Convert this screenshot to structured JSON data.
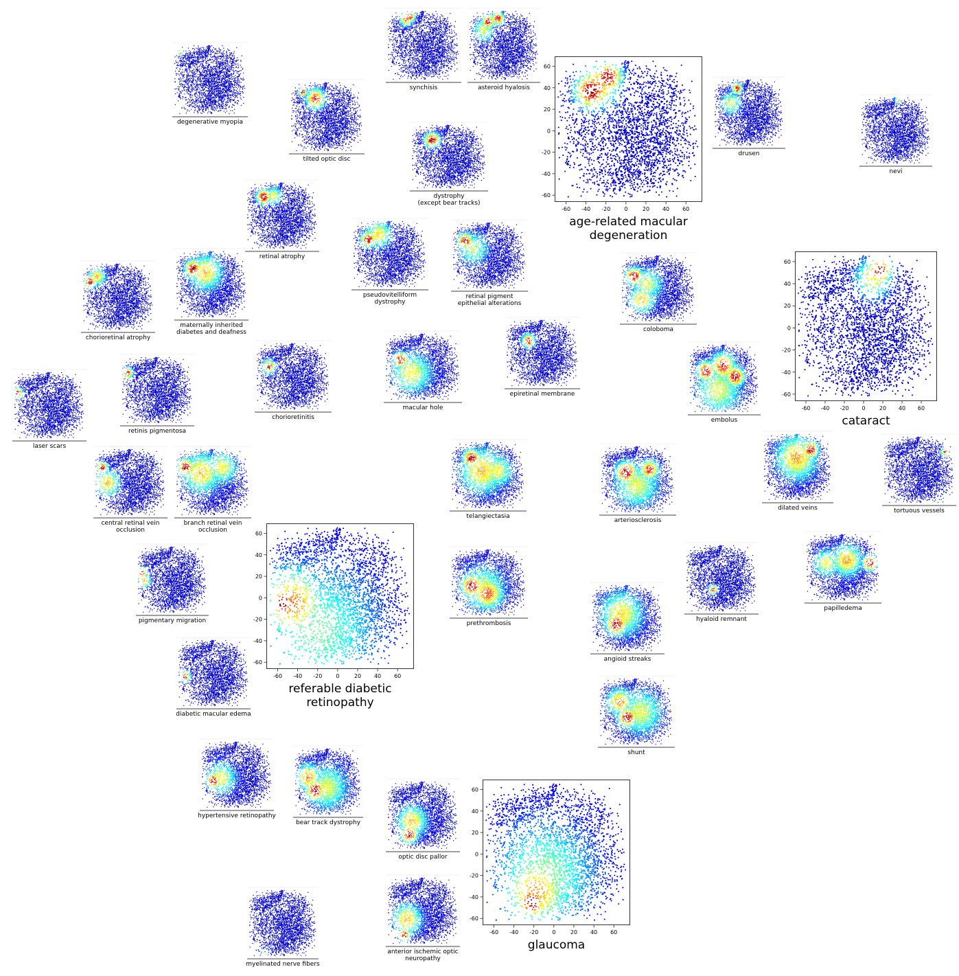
{
  "figure": {
    "colormap": "jet",
    "point_color_low": "#00008b",
    "point_color_high": "#8b0000"
  },
  "chart_data": [
    {
      "type": "scatter",
      "title": "age-related macular degeneration",
      "size": "large",
      "xlim": [
        -70,
        75
      ],
      "ylim": [
        -65,
        68
      ],
      "xticks": [
        -60,
        -40,
        -20,
        0,
        20,
        40,
        60
      ],
      "yticks": [
        -60,
        -40,
        -20,
        0,
        20,
        40,
        60
      ],
      "hotspots": [
        {
          "x": -35,
          "y": 37,
          "s": 8,
          "w": 1
        },
        {
          "x": -18,
          "y": 50,
          "s": 7,
          "w": 0.95
        },
        {
          "x": -28,
          "y": 42,
          "s": 10,
          "w": 0.6
        }
      ]
    },
    {
      "type": "scatter",
      "title": "referable diabetic\nretinopathy",
      "size": "large",
      "xlim": [
        -70,
        75
      ],
      "ylim": [
        -65,
        68
      ],
      "xticks": [
        -60,
        -40,
        -20,
        0,
        20,
        40,
        60
      ],
      "yticks": [
        -60,
        -40,
        -20,
        0,
        20,
        40,
        60
      ],
      "hotspots": [
        {
          "x": -55,
          "y": -5,
          "s": 7,
          "w": 1
        },
        {
          "x": -45,
          "y": -5,
          "s": 16,
          "w": 0.6
        },
        {
          "x": -20,
          "y": -30,
          "s": 30,
          "w": 0.22
        }
      ]
    },
    {
      "type": "scatter",
      "title": "cataract",
      "size": "large",
      "xlim": [
        -70,
        75
      ],
      "ylim": [
        -65,
        68
      ],
      "xticks": [
        -60,
        -40,
        -20,
        0,
        20,
        40,
        60
      ],
      "yticks": [
        -60,
        -40,
        -20,
        0,
        20,
        40,
        60
      ],
      "hotspots": [
        {
          "x": 17,
          "y": 52,
          "s": 6,
          "w": 1
        },
        {
          "x": 10,
          "y": 45,
          "s": 9,
          "w": 0.4
        }
      ]
    },
    {
      "type": "scatter",
      "title": "glaucoma",
      "size": "large",
      "xlim": [
        -70,
        75
      ],
      "ylim": [
        -65,
        68
      ],
      "xticks": [
        -60,
        -40,
        -20,
        0,
        20,
        40,
        60
      ],
      "yticks": [
        -60,
        -40,
        -20,
        0,
        20,
        40,
        60
      ],
      "hotspots": [
        {
          "x": -22,
          "y": -45,
          "s": 7,
          "w": 1
        },
        {
          "x": -18,
          "y": -35,
          "s": 16,
          "w": 0.55
        },
        {
          "x": -10,
          "y": -20,
          "s": 25,
          "w": 0.25
        }
      ]
    },
    {
      "type": "scatter",
      "title": "degenerative myopia",
      "size": "small",
      "hotspots": [
        {
          "x": -57,
          "y": 53,
          "s": 3,
          "w": 1
        }
      ]
    },
    {
      "type": "scatter",
      "title": "tilted optic disc",
      "size": "small",
      "hotspots": [
        {
          "x": -45,
          "y": 48,
          "s": 4,
          "w": 1
        },
        {
          "x": -20,
          "y": 35,
          "s": 9,
          "w": 0.8
        }
      ]
    },
    {
      "type": "scatter",
      "title": "synchisis",
      "size": "small",
      "hotspots": [
        {
          "x": -25,
          "y": 55,
          "s": 5,
          "w": 1
        },
        {
          "x": -32,
          "y": 50,
          "s": 6,
          "w": 0.7
        }
      ]
    },
    {
      "type": "scatter",
      "title": "asteroid hyalosis",
      "size": "small",
      "hotspots": [
        {
          "x": -30,
          "y": 45,
          "s": 6,
          "w": 1
        },
        {
          "x": -10,
          "y": 52,
          "s": 6,
          "w": 0.9
        },
        {
          "x": -40,
          "y": 30,
          "s": 10,
          "w": 0.35
        }
      ]
    },
    {
      "type": "scatter",
      "title": "drusen",
      "size": "small",
      "hotspots": [
        {
          "x": -22,
          "y": 48,
          "s": 5,
          "w": 1
        },
        {
          "x": -35,
          "y": 20,
          "s": 10,
          "w": 0.35
        }
      ]
    },
    {
      "type": "scatter",
      "title": "nevi",
      "size": "small",
      "hotspots": [
        {
          "x": 7,
          "y": 60,
          "s": 3,
          "w": 1
        }
      ]
    },
    {
      "type": "scatter",
      "title": "dystrophy\n(except bear tracks)",
      "size": "small",
      "hotspots": [
        {
          "x": -30,
          "y": 35,
          "s": 7,
          "w": 1
        }
      ]
    },
    {
      "type": "scatter",
      "title": "retinal atrophy",
      "size": "small",
      "hotspots": [
        {
          "x": -35,
          "y": 38,
          "s": 7,
          "w": 1
        },
        {
          "x": -15,
          "y": 40,
          "s": 8,
          "w": 0.4
        }
      ]
    },
    {
      "type": "scatter",
      "title": "chorioretinal atrophy",
      "size": "small",
      "hotspots": [
        {
          "x": -55,
          "y": 30,
          "s": 6,
          "w": 1
        },
        {
          "x": -40,
          "y": 40,
          "s": 8,
          "w": 0.5
        }
      ]
    },
    {
      "type": "scatter",
      "title": "maternally inherited\ndiabetes and deafness",
      "size": "small",
      "hotspots": [
        {
          "x": -35,
          "y": 32,
          "s": 8,
          "w": 1
        },
        {
          "x": -10,
          "y": 25,
          "s": 16,
          "w": 0.5
        }
      ]
    },
    {
      "type": "scatter",
      "title": "pseudovitelliform\ndystrophy",
      "size": "small",
      "hotspots": [
        {
          "x": -40,
          "y": 30,
          "s": 7,
          "w": 1
        },
        {
          "x": -20,
          "y": 40,
          "s": 12,
          "w": 0.45
        }
      ]
    },
    {
      "type": "scatter",
      "title": "retinal pigment\nepithelial alterations",
      "size": "small",
      "hotspots": [
        {
          "x": -45,
          "y": 30,
          "s": 7,
          "w": 1
        },
        {
          "x": -30,
          "y": 15,
          "s": 14,
          "w": 0.3
        }
      ]
    },
    {
      "type": "scatter",
      "title": "coloboma",
      "size": "small",
      "hotspots": [
        {
          "x": -45,
          "y": 25,
          "s": 8,
          "w": 1
        },
        {
          "x": -30,
          "y": -20,
          "s": 12,
          "w": 0.5
        },
        {
          "x": -20,
          "y": 10,
          "s": 14,
          "w": 0.35
        }
      ]
    },
    {
      "type": "scatter",
      "title": "laser scars",
      "size": "small",
      "hotspots": [
        {
          "x": -62,
          "y": 25,
          "s": 5,
          "w": 1
        }
      ]
    },
    {
      "type": "scatter",
      "title": "retinis pigmentosa",
      "size": "small",
      "hotspots": [
        {
          "x": -58,
          "y": 35,
          "s": 5,
          "w": 1
        }
      ]
    },
    {
      "type": "scatter",
      "title": "chorioretinitis",
      "size": "small",
      "hotspots": [
        {
          "x": -45,
          "y": 20,
          "s": 6,
          "w": 1
        }
      ]
    },
    {
      "type": "scatter",
      "title": "macular hole",
      "size": "small",
      "hotspots": [
        {
          "x": -40,
          "y": 15,
          "s": 7,
          "w": 1
        },
        {
          "x": -20,
          "y": -10,
          "s": 18,
          "w": 0.4
        }
      ]
    },
    {
      "type": "scatter",
      "title": "epiretinal membrane",
      "size": "small",
      "hotspots": [
        {
          "x": -25,
          "y": 25,
          "s": 6,
          "w": 1
        }
      ]
    },
    {
      "type": "scatter",
      "title": "embolus",
      "size": "small",
      "hotspots": [
        {
          "x": -35,
          "y": 15,
          "s": 9,
          "w": 1
        },
        {
          "x": 25,
          "y": 5,
          "s": 9,
          "w": 1
        },
        {
          "x": 0,
          "y": 25,
          "s": 12,
          "w": 0.8
        },
        {
          "x": -10,
          "y": -20,
          "s": 22,
          "w": 0.35
        }
      ]
    },
    {
      "type": "scatter",
      "title": "central retinal vein\nocclusion",
      "size": "small",
      "hotspots": [
        {
          "x": -55,
          "y": 30,
          "s": 5,
          "w": 1
        },
        {
          "x": -45,
          "y": 0,
          "s": 12,
          "w": 0.5
        }
      ]
    },
    {
      "type": "scatter",
      "title": "branch retinal vein\nocclusion",
      "size": "small",
      "hotspots": [
        {
          "x": -50,
          "y": 30,
          "s": 8,
          "w": 1
        },
        {
          "x": -20,
          "y": 20,
          "s": 18,
          "w": 0.5
        },
        {
          "x": 20,
          "y": 30,
          "s": 14,
          "w": 0.4
        }
      ]
    },
    {
      "type": "scatter",
      "title": "telangiectasia",
      "size": "small",
      "hotspots": [
        {
          "x": -30,
          "y": 35,
          "s": 8,
          "w": 1
        },
        {
          "x": -10,
          "y": 10,
          "s": 20,
          "w": 0.5
        },
        {
          "x": 20,
          "y": 10,
          "s": 14,
          "w": 0.4
        }
      ]
    },
    {
      "type": "scatter",
      "title": "arteriosclerosis",
      "size": "small",
      "hotspots": [
        {
          "x": -20,
          "y": 15,
          "s": 10,
          "w": 1
        },
        {
          "x": 25,
          "y": 20,
          "s": 9,
          "w": 0.8
        },
        {
          "x": 0,
          "y": -10,
          "s": 20,
          "w": 0.35
        }
      ]
    },
    {
      "type": "scatter",
      "title": "dilated veins",
      "size": "small",
      "hotspots": [
        {
          "x": 30,
          "y": 35,
          "s": 8,
          "w": 1
        },
        {
          "x": 0,
          "y": 20,
          "s": 20,
          "w": 0.55
        }
      ]
    },
    {
      "type": "scatter",
      "title": "tortuous vessels",
      "size": "small",
      "hotspots": [
        {
          "x": 55,
          "y": 35,
          "s": 4,
          "w": 1
        }
      ]
    },
    {
      "type": "scatter",
      "title": "pigmentary migration",
      "size": "small",
      "hotspots": [
        {
          "x": -60,
          "y": 15,
          "s": 5,
          "w": 1
        },
        {
          "x": -55,
          "y": 0,
          "s": 6,
          "w": 0.6
        }
      ]
    },
    {
      "type": "scatter",
      "title": "prethrombosis",
      "size": "small",
      "hotspots": [
        {
          "x": -30,
          "y": -5,
          "s": 10,
          "w": 1
        },
        {
          "x": 0,
          "y": -20,
          "s": 14,
          "w": 0.7
        },
        {
          "x": -10,
          "y": -10,
          "s": 20,
          "w": 0.35
        }
      ]
    },
    {
      "type": "scatter",
      "title": "hyaloid remnant",
      "size": "small",
      "hotspots": [
        {
          "x": -15,
          "y": -20,
          "s": 4,
          "w": 1
        }
      ]
    },
    {
      "type": "scatter",
      "title": "papilledema",
      "size": "small",
      "hotspots": [
        {
          "x": 55,
          "y": 10,
          "s": 7,
          "w": 1
        },
        {
          "x": 10,
          "y": 15,
          "s": 14,
          "w": 0.55
        },
        {
          "x": -30,
          "y": 10,
          "s": 12,
          "w": 0.4
        }
      ]
    },
    {
      "type": "scatter",
      "title": "angioid streaks",
      "size": "small",
      "hotspots": [
        {
          "x": -20,
          "y": -10,
          "s": 10,
          "w": 1
        },
        {
          "x": -10,
          "y": 10,
          "s": 20,
          "w": 0.45
        }
      ]
    },
    {
      "type": "scatter",
      "title": "diabetic macular edema",
      "size": "small",
      "hotspots": [
        {
          "x": -55,
          "y": -5,
          "s": 5,
          "w": 1
        }
      ]
    },
    {
      "type": "scatter",
      "title": "shunt",
      "size": "small",
      "hotspots": [
        {
          "x": -15,
          "y": -10,
          "s": 9,
          "w": 1
        },
        {
          "x": -30,
          "y": 20,
          "s": 12,
          "w": 0.6
        },
        {
          "x": 10,
          "y": 0,
          "s": 20,
          "w": 0.35
        }
      ]
    },
    {
      "type": "scatter",
      "title": "hypertensive retinopathy",
      "size": "small",
      "hotspots": [
        {
          "x": -45,
          "y": -10,
          "s": 7,
          "w": 1
        },
        {
          "x": -30,
          "y": -5,
          "s": 14,
          "w": 0.4
        }
      ]
    },
    {
      "type": "scatter",
      "title": "bear track dystrophy",
      "size": "small",
      "hotspots": [
        {
          "x": -25,
          "y": -15,
          "s": 10,
          "w": 1
        },
        {
          "x": -40,
          "y": 10,
          "s": 12,
          "w": 0.6
        },
        {
          "x": 0,
          "y": -10,
          "s": 20,
          "w": 0.35
        }
      ]
    },
    {
      "type": "scatter",
      "title": "optic disc pallor",
      "size": "small",
      "hotspots": [
        {
          "x": -25,
          "y": -35,
          "s": 8,
          "w": 1
        },
        {
          "x": -20,
          "y": -10,
          "s": 14,
          "w": 0.5
        }
      ]
    },
    {
      "type": "scatter",
      "title": "anterior ischemic optic\nneuropathy",
      "size": "small",
      "hotspots": [
        {
          "x": -35,
          "y": -45,
          "s": 6,
          "w": 1
        },
        {
          "x": -30,
          "y": -15,
          "s": 14,
          "w": 0.5
        }
      ]
    },
    {
      "type": "scatter",
      "title": "myelinated nerve fibers",
      "size": "small",
      "hotspots": [
        {
          "x": -35,
          "y": -55,
          "s": 3,
          "w": 1
        }
      ]
    }
  ]
}
